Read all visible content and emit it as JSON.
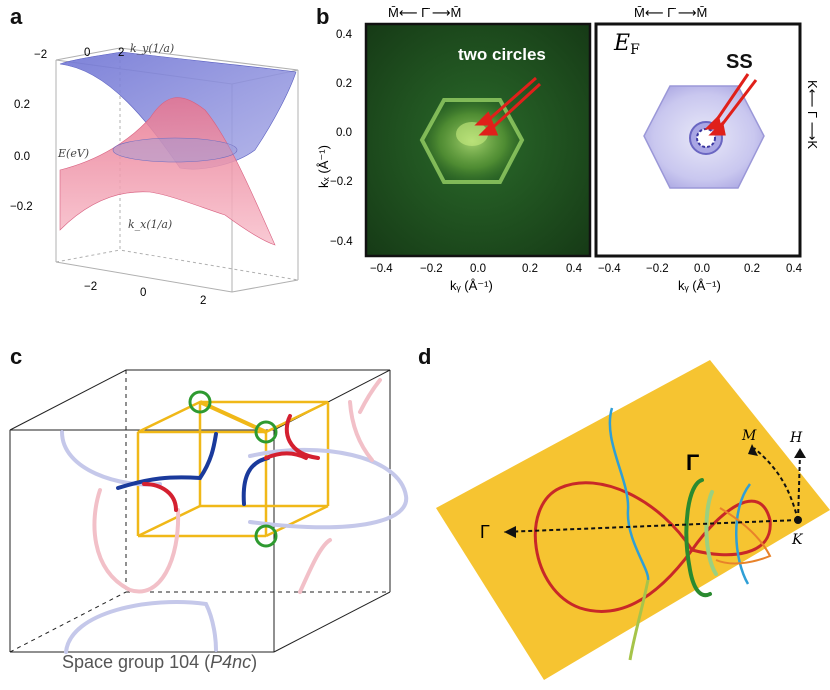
{
  "panels": {
    "a": {
      "letter": "a",
      "ky_axis_label": "k_y(1/a)",
      "kx_axis_label": "k_x(1/a)",
      "e_axis_label": "E(eV)",
      "ky_ticks": [
        "−2",
        "0",
        "2"
      ],
      "kx_ticks": [
        "−2",
        "0",
        "2"
      ],
      "e_ticks": [
        "0.2",
        "0.0",
        "−0.2"
      ],
      "colors": {
        "upper_band": "#8a8fdc",
        "lower_band": "#f2a0b4"
      }
    },
    "b": {
      "letter": "b",
      "top_axis_left": "M̄⟵ Γ̄ ⟶M̄",
      "top_axis_right": "M̄⟵ Γ̄ ⟶M̄",
      "side_axis_right": "K⟵ Γ ⟶K",
      "ylabel": "kₓ (Å⁻¹)",
      "xlabel_left": "kᵧ (Å⁻¹)",
      "xlabel_right": "kᵧ (Å⁻¹)",
      "y_ticks": [
        "0.4",
        "0.2",
        "0.0",
        "−0.2",
        "−0.4"
      ],
      "x_ticks": [
        "−0.4",
        "−0.2",
        "0.0",
        "0.2",
        "0.4"
      ],
      "annotation_left": "two circles",
      "annotation_right": "SS",
      "ef_label": "E",
      "ef_sub": "F",
      "colors": {
        "arpes_bg": "#1c4a1c",
        "hexagon": "#9fd86a",
        "arrow": "#e0201a",
        "calc_fill": "#b8b6ea"
      }
    },
    "c": {
      "letter": "c",
      "caption_prefix": "Space group 104 (",
      "caption_group": "P4nc",
      "caption_suffix": ")",
      "colors": {
        "box": "#f0b818",
        "node": "#2e9a30",
        "blue": "#1a3a9c",
        "red": "#d42030",
        "faint_blue": "#c5c8ea",
        "faint_red": "#f2c0c8"
      }
    },
    "d": {
      "letter": "d",
      "gamma_large": "Γ",
      "gamma_left": "Γ",
      "label_M": "M",
      "label_H": "H",
      "label_K": "K",
      "colors": {
        "plane": "#f6c431",
        "red": "#c82828",
        "blue": "#2f9fd6",
        "green": "#2a8a30",
        "orange": "#e8822a"
      }
    }
  }
}
